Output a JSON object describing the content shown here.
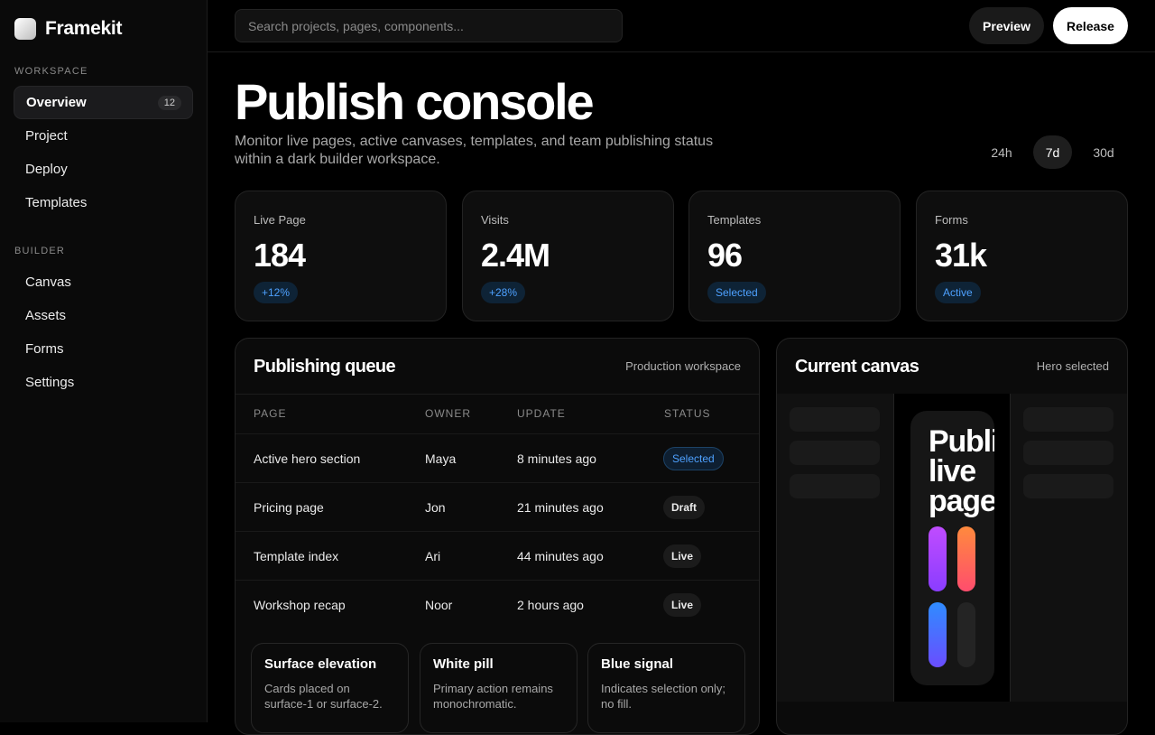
{
  "app": {
    "name": "Framekit"
  },
  "sidebar": {
    "workspace_label": "WORKSPACE",
    "workspace_items": [
      {
        "label": "Overview",
        "count": "12"
      },
      {
        "label": "Project"
      },
      {
        "label": "Deploy"
      },
      {
        "label": "Templates"
      }
    ],
    "builder_label": "BUILDER",
    "builder_items": [
      {
        "label": "Canvas"
      },
      {
        "label": "Assets"
      },
      {
        "label": "Forms"
      },
      {
        "label": "Settings"
      }
    ]
  },
  "topbar": {
    "search_placeholder": "Search projects, pages, components...",
    "preview_label": "Preview",
    "release_label": "Release"
  },
  "header": {
    "title": "Publish console",
    "subtitle": "Monitor live pages, active canvases, templates, and team publishing status within a dark builder workspace.",
    "ranges": [
      "24h",
      "7d",
      "30d"
    ],
    "active_range": "7d"
  },
  "stats": [
    {
      "label": "Live Page",
      "value": "184",
      "badge": "+12%"
    },
    {
      "label": "Visits",
      "value": "2.4M",
      "badge": "+28%"
    },
    {
      "label": "Templates",
      "value": "96",
      "badge": "Selected"
    },
    {
      "label": "Forms",
      "value": "31k",
      "badge": "Active"
    }
  ],
  "queue": {
    "title": "Publishing queue",
    "meta": "Production workspace",
    "columns": [
      "PAGE",
      "OWNER",
      "UPDATE",
      "STATUS"
    ],
    "rows": [
      {
        "page": "Active hero section",
        "owner": "Maya",
        "update": "8 minutes ago",
        "status": "Selected"
      },
      {
        "page": "Pricing page",
        "owner": "Jon",
        "update": "21 minutes ago",
        "status": "Draft"
      },
      {
        "page": "Template index",
        "owner": "Ari",
        "update": "44 minutes ago",
        "status": "Live"
      },
      {
        "page": "Workshop recap",
        "owner": "Noor",
        "update": "2 hours ago",
        "status": "Live"
      }
    ],
    "notes": [
      {
        "title": "Surface elevation",
        "desc": "Cards placed on surface-1 or surface-2."
      },
      {
        "title": "White pill",
        "desc": "Primary action remains monochromatic."
      },
      {
        "title": "Blue signal",
        "desc": "Indicates selection only; no fill."
      }
    ]
  },
  "canvas": {
    "title": "Current canvas",
    "meta": "Hero selected",
    "preview_text": "Publish live pages"
  },
  "colors": {
    "accent": "#4ea1ff",
    "background": "#000000",
    "surface": "#0e0e0e"
  }
}
